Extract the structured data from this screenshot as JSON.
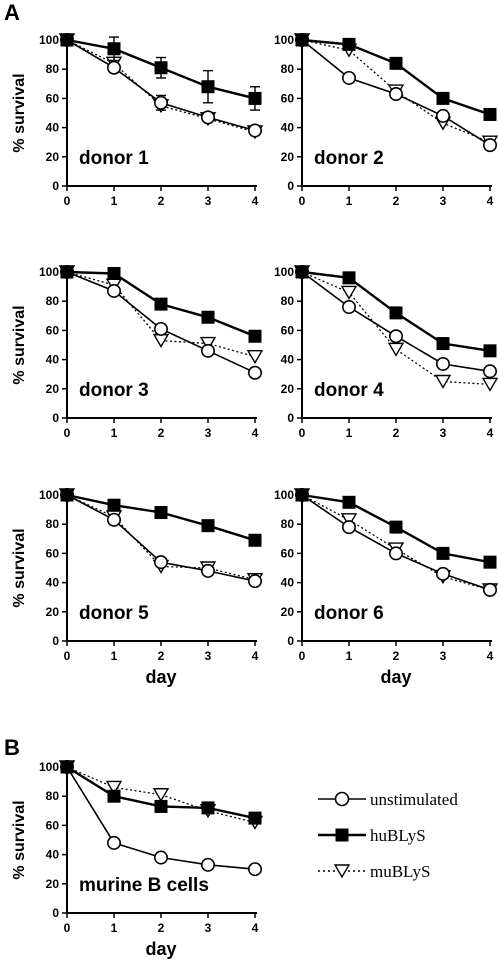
{
  "panels": {
    "a": "A",
    "b": "B"
  },
  "legend": {
    "entries": [
      {
        "label": "unstimulated",
        "series": "unstimulated"
      },
      {
        "label": "huBLyS",
        "series": "huBLyS"
      },
      {
        "label": "muBLyS",
        "series": "muBLyS"
      }
    ]
  },
  "series_styles": {
    "unstimulated": {
      "marker": "open-circle",
      "line": "solid",
      "color": "#000000"
    },
    "huBLyS": {
      "marker": "filled-square",
      "line": "solid",
      "color": "#000000"
    },
    "muBLyS": {
      "marker": "open-triangle-down",
      "line": "dotted",
      "color": "#000000"
    }
  },
  "chart_data": [
    {
      "type": "line",
      "panel": "A",
      "title": "donor 1",
      "ylabel": "% survival",
      "xlabel": "",
      "x": [
        0,
        1,
        2,
        3,
        4
      ],
      "xticks": [
        "0",
        "1",
        "2",
        "3",
        "4"
      ],
      "xlim": [
        0,
        4
      ],
      "ylim": [
        0,
        100
      ],
      "yticks": [
        "0",
        "20",
        "40",
        "60",
        "80",
        "100"
      ],
      "series": [
        {
          "key": "unstimulated",
          "values": [
            100,
            81,
            57,
            47,
            38
          ],
          "errors": [
            0,
            2,
            5,
            3,
            2
          ]
        },
        {
          "key": "huBLyS",
          "values": [
            100,
            94,
            81,
            68,
            60
          ],
          "errors": [
            0,
            8,
            7,
            11,
            8
          ]
        },
        {
          "key": "muBLyS",
          "values": [
            100,
            84,
            55,
            46,
            37
          ],
          "errors": [
            0,
            0,
            0,
            0,
            0
          ]
        }
      ]
    },
    {
      "type": "line",
      "panel": "A",
      "title": "donor 2",
      "ylabel": "",
      "xlabel": "",
      "x": [
        0,
        1,
        2,
        3,
        4
      ],
      "xticks": [
        "0",
        "1",
        "2",
        "3",
        "4"
      ],
      "xlim": [
        0,
        4
      ],
      "ylim": [
        0,
        100
      ],
      "yticks": [
        "0",
        "20",
        "40",
        "60",
        "80",
        "100"
      ],
      "series": [
        {
          "key": "unstimulated",
          "values": [
            100,
            74,
            63,
            48,
            28
          ]
        },
        {
          "key": "huBLyS",
          "values": [
            100,
            97,
            84,
            60,
            49
          ]
        },
        {
          "key": "muBLyS",
          "values": [
            100,
            93,
            65,
            43,
            30
          ]
        }
      ]
    },
    {
      "type": "line",
      "panel": "A",
      "title": "donor 3",
      "ylabel": "% survival",
      "xlabel": "",
      "x": [
        0,
        1,
        2,
        3,
        4
      ],
      "xticks": [
        "0",
        "1",
        "2",
        "3",
        "4"
      ],
      "xlim": [
        0,
        4
      ],
      "ylim": [
        0,
        100
      ],
      "yticks": [
        "0",
        "20",
        "40",
        "60",
        "80",
        "100"
      ],
      "series": [
        {
          "key": "unstimulated",
          "values": [
            100,
            87,
            61,
            46,
            31
          ]
        },
        {
          "key": "huBLyS",
          "values": [
            100,
            99,
            78,
            69,
            56
          ]
        },
        {
          "key": "muBLyS",
          "values": [
            100,
            91,
            53,
            51,
            42
          ]
        }
      ]
    },
    {
      "type": "line",
      "panel": "A",
      "title": "donor 4",
      "ylabel": "",
      "xlabel": "",
      "x": [
        0,
        1,
        2,
        3,
        4
      ],
      "xticks": [
        "0",
        "1",
        "2",
        "3",
        "4"
      ],
      "xlim": [
        0,
        4
      ],
      "ylim": [
        0,
        100
      ],
      "yticks": [
        "0",
        "20",
        "40",
        "60",
        "80",
        "100"
      ],
      "series": [
        {
          "key": "unstimulated",
          "values": [
            100,
            76,
            56,
            37,
            32
          ]
        },
        {
          "key": "huBLyS",
          "values": [
            100,
            96,
            72,
            51,
            46
          ]
        },
        {
          "key": "muBLyS",
          "values": [
            100,
            86,
            47,
            25,
            23
          ]
        }
      ]
    },
    {
      "type": "line",
      "panel": "A",
      "title": "donor 5",
      "ylabel": "% survival",
      "xlabel": "day",
      "x": [
        0,
        1,
        2,
        3,
        4
      ],
      "xticks": [
        "0",
        "1",
        "2",
        "3",
        "4"
      ],
      "xlim": [
        0,
        4
      ],
      "ylim": [
        0,
        100
      ],
      "yticks": [
        "0",
        "20",
        "40",
        "60",
        "80",
        "100"
      ],
      "series": [
        {
          "key": "unstimulated",
          "values": [
            100,
            83,
            54,
            48,
            41
          ]
        },
        {
          "key": "huBLyS",
          "values": [
            100,
            93,
            88,
            79,
            69
          ]
        },
        {
          "key": "muBLyS",
          "values": [
            100,
            85,
            51,
            50,
            42
          ]
        }
      ]
    },
    {
      "type": "line",
      "panel": "A",
      "title": "donor 6",
      "ylabel": "",
      "xlabel": "day",
      "x": [
        0,
        1,
        2,
        3,
        4
      ],
      "xticks": [
        "0",
        "1",
        "2",
        "3",
        "4"
      ],
      "xlim": [
        0,
        4
      ],
      "ylim": [
        0,
        100
      ],
      "yticks": [
        "0",
        "20",
        "40",
        "60",
        "80",
        "100"
      ],
      "series": [
        {
          "key": "unstimulated",
          "values": [
            100,
            78,
            60,
            46,
            35
          ]
        },
        {
          "key": "huBLyS",
          "values": [
            100,
            95,
            78,
            60,
            54
          ]
        },
        {
          "key": "muBLyS",
          "values": [
            100,
            83,
            63,
            44,
            35
          ]
        }
      ]
    },
    {
      "type": "line",
      "panel": "B",
      "title": "murine B cells",
      "ylabel": "% survival",
      "xlabel": "day",
      "x": [
        0,
        1,
        2,
        3,
        4
      ],
      "xticks": [
        "0",
        "1",
        "2",
        "3",
        "4"
      ],
      "xlim": [
        0,
        4
      ],
      "ylim": [
        0,
        100
      ],
      "yticks": [
        "0",
        "20",
        "40",
        "60",
        "80",
        "100"
      ],
      "series": [
        {
          "key": "unstimulated",
          "values": [
            100,
            48,
            38,
            33,
            30
          ]
        },
        {
          "key": "huBLyS",
          "values": [
            100,
            80,
            73,
            72,
            65
          ]
        },
        {
          "key": "muBLyS",
          "values": [
            100,
            86,
            81,
            70,
            62
          ]
        }
      ]
    }
  ]
}
